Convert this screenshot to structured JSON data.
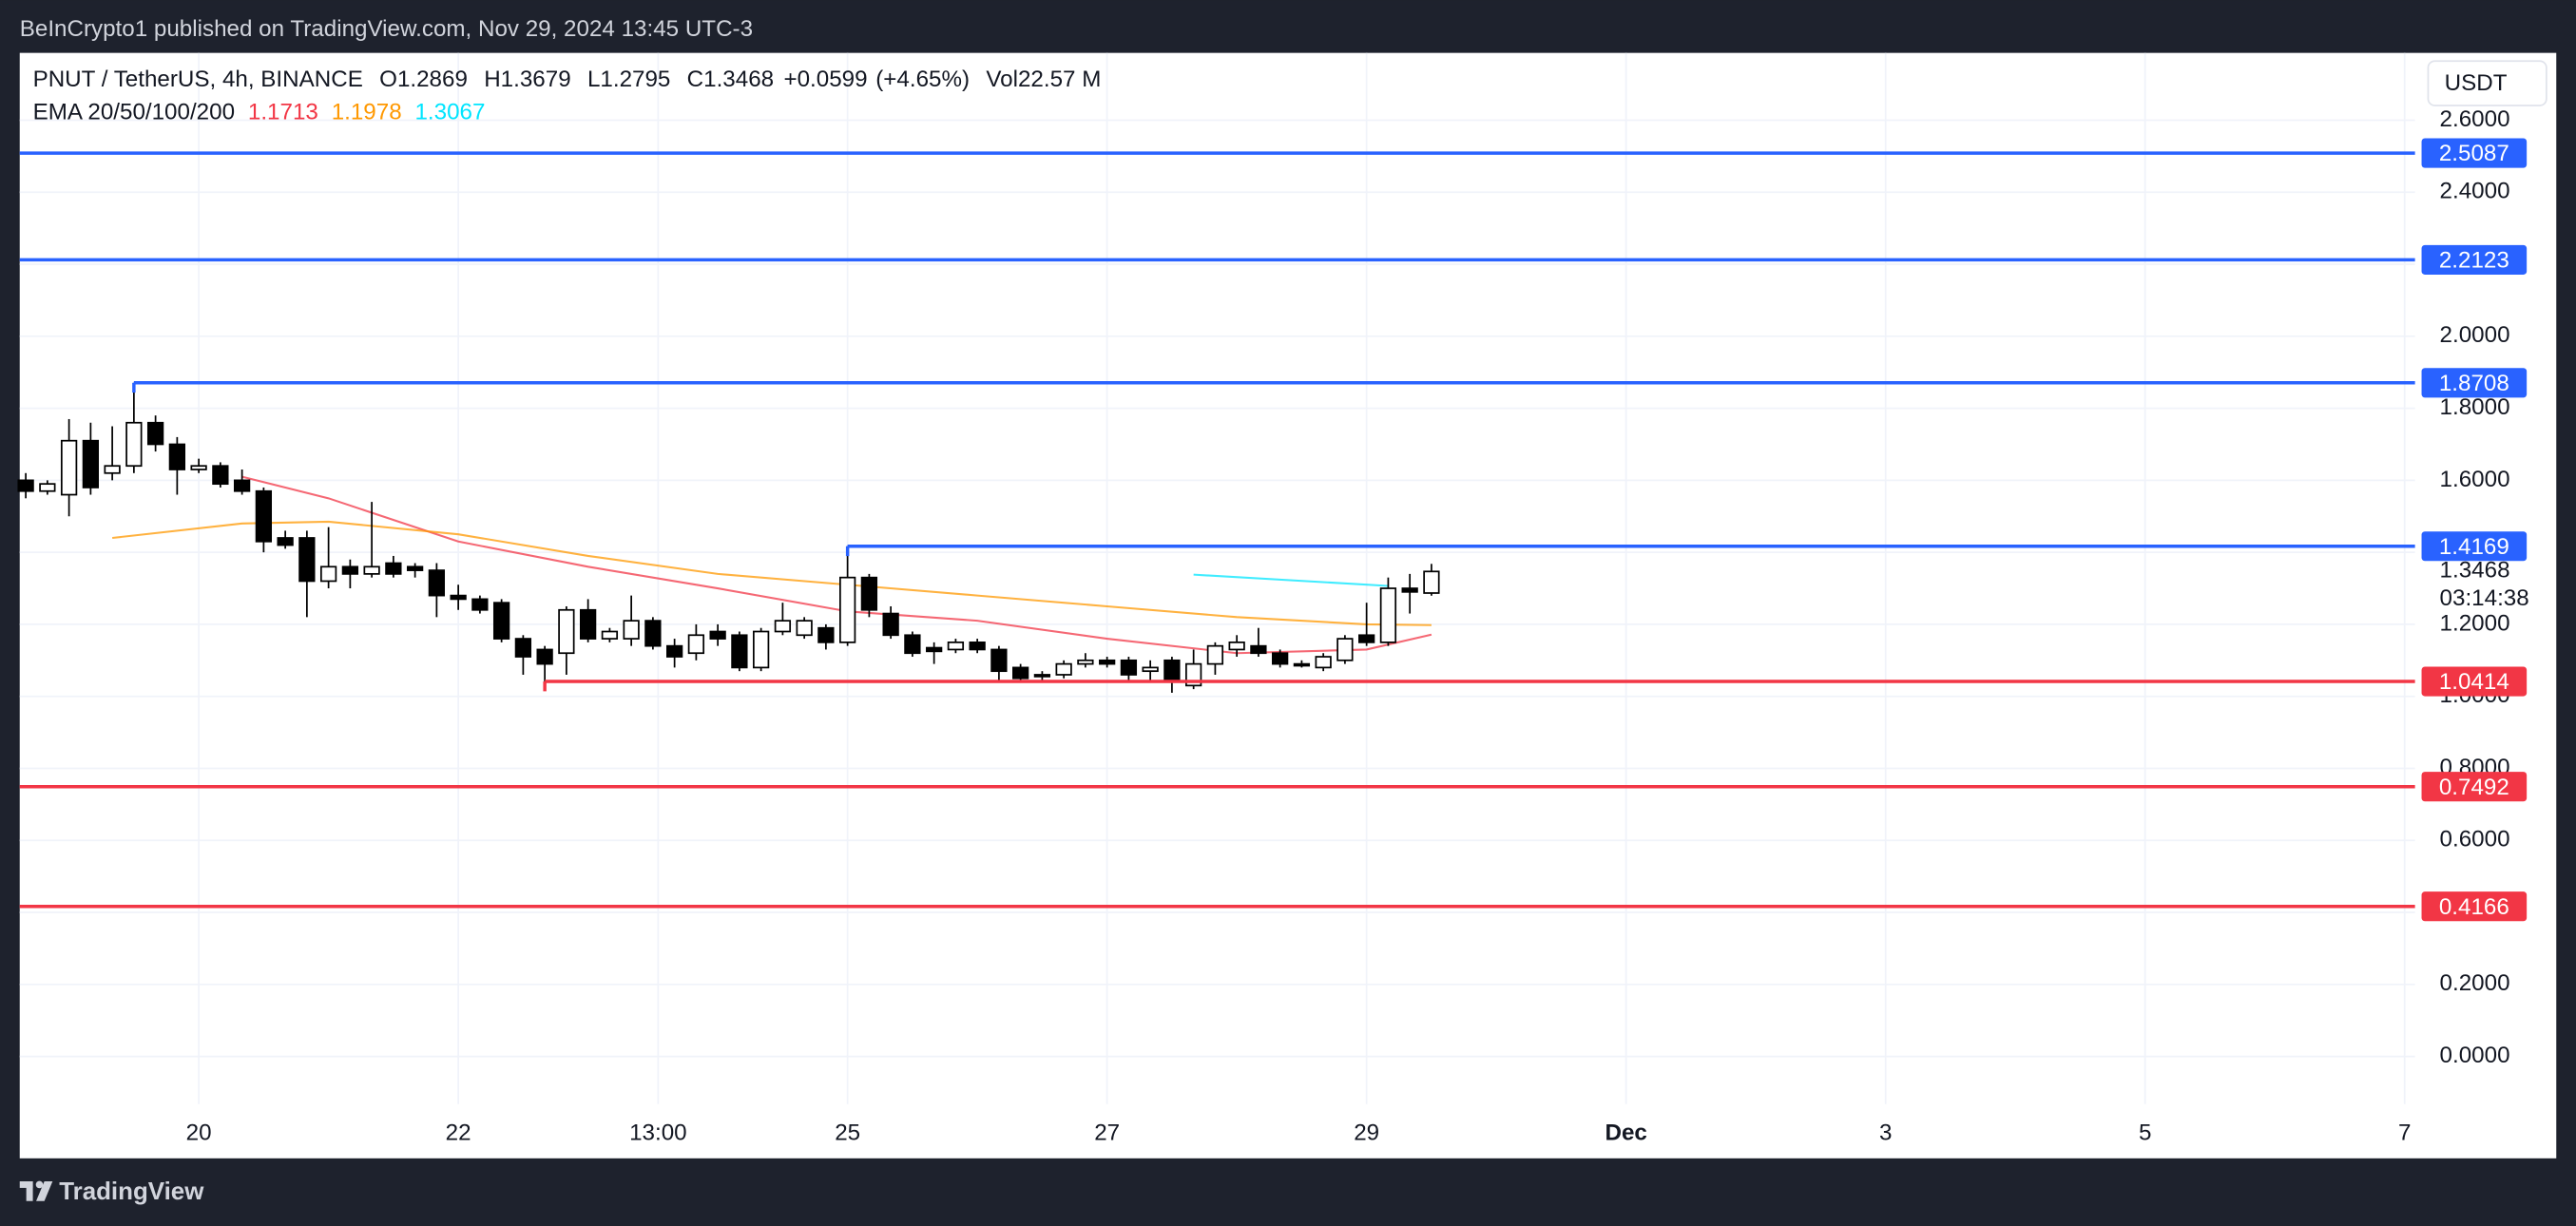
{
  "header": {
    "text": "BeInCrypto1 published on TradingView.com, Nov 29, 2024 13:45 UTC-3"
  },
  "footer": {
    "text": "TradingView"
  },
  "chart_data": {
    "type": "candlestick",
    "title": "PNUT / TetherUS, 4h, BINANCE",
    "ohlc": [
      {
        "prefix": "O",
        "value": 1.2869
      },
      {
        "prefix": "H",
        "value": 1.3679
      },
      {
        "prefix": "L",
        "value": 1.2795
      },
      {
        "prefix": "C",
        "value": 1.3468
      }
    ],
    "change": {
      "value": 0.0599,
      "label": "+0.0599"
    },
    "change_pct": {
      "value": 4.65,
      "label": "(+4.65%)"
    },
    "volume": {
      "prefix": "Vol",
      "value": 22570000,
      "label": "22.57 M"
    },
    "ema_legend": {
      "title": "EMA 20/50/100/200",
      "values": [
        1.1713,
        1.1978,
        1.3067
      ]
    },
    "currency": "USDT",
    "last_price": 1.3468,
    "countdown": "03:14:38",
    "candles": {
      "x": [
        18.6667,
        18.8333,
        19,
        19.1667,
        19.3333,
        19.5,
        19.6667,
        19.8333,
        20,
        20.1667,
        20.3333,
        20.5,
        20.6667,
        20.8333,
        21,
        21.1667,
        21.3333,
        21.5,
        21.6667,
        21.8333,
        22,
        22.1667,
        22.3333,
        22.5,
        22.6667,
        22.8333,
        23,
        23.1667,
        23.3333,
        23.5,
        23.6667,
        23.8333,
        24,
        24.1667,
        24.3333,
        24.5,
        24.6667,
        24.8333,
        25,
        25.1667,
        25.3333,
        25.5,
        25.6667,
        25.8333,
        26,
        26.1667,
        26.3333,
        26.5,
        26.6667,
        26.8333,
        27,
        27.1667,
        27.3333,
        27.5,
        27.6667,
        27.8333,
        28,
        28.1667,
        28.3333,
        28.5,
        28.6667,
        28.8333,
        29,
        29.1667,
        29.3333,
        29.5
      ],
      "open": [
        1.6,
        1.57,
        1.56,
        1.71,
        1.62,
        1.64,
        1.76,
        1.7,
        1.63,
        1.64,
        1.6,
        1.57,
        1.44,
        1.44,
        1.32,
        1.36,
        1.34,
        1.37,
        1.36,
        1.35,
        1.28,
        1.27,
        1.26,
        1.16,
        1.13,
        1.12,
        1.24,
        1.16,
        1.16,
        1.21,
        1.14,
        1.12,
        1.18,
        1.17,
        1.08,
        1.18,
        1.17,
        1.19,
        1.15,
        1.33,
        1.23,
        1.17,
        1.135,
        1.13,
        1.15,
        1.13,
        1.08,
        1.06,
        1.06,
        1.09,
        1.1,
        1.1,
        1.07,
        1.1,
        1.03,
        1.09,
        1.13,
        1.14,
        1.12,
        1.09,
        1.08,
        1.1,
        1.17,
        1.15,
        1.3,
        1.2869
      ],
      "high": [
        1.62,
        1.6,
        1.77,
        1.76,
        1.75,
        1.8708,
        1.78,
        1.72,
        1.66,
        1.65,
        1.63,
        1.58,
        1.46,
        1.46,
        1.47,
        1.38,
        1.54,
        1.39,
        1.37,
        1.37,
        1.31,
        1.28,
        1.27,
        1.17,
        1.14,
        1.25,
        1.27,
        1.19,
        1.28,
        1.22,
        1.16,
        1.2,
        1.2,
        1.18,
        1.19,
        1.26,
        1.22,
        1.2,
        1.4169,
        1.34,
        1.25,
        1.18,
        1.15,
        1.16,
        1.16,
        1.14,
        1.09,
        1.07,
        1.1,
        1.12,
        1.11,
        1.11,
        1.1,
        1.11,
        1.13,
        1.15,
        1.17,
        1.19,
        1.13,
        1.1,
        1.12,
        1.17,
        1.26,
        1.33,
        1.34,
        1.3679
      ],
      "low": [
        1.55,
        1.56,
        1.5,
        1.56,
        1.6,
        1.62,
        1.68,
        1.56,
        1.62,
        1.58,
        1.56,
        1.4,
        1.41,
        1.22,
        1.3,
        1.3,
        1.33,
        1.33,
        1.33,
        1.22,
        1.24,
        1.23,
        1.15,
        1.06,
        1.0414,
        1.06,
        1.15,
        1.15,
        1.14,
        1.13,
        1.08,
        1.1,
        1.14,
        1.07,
        1.07,
        1.17,
        1.16,
        1.13,
        1.14,
        1.22,
        1.16,
        1.11,
        1.09,
        1.12,
        1.12,
        1.04,
        1.04,
        1.04,
        1.05,
        1.08,
        1.08,
        1.04,
        1.04,
        1.01,
        1.02,
        1.06,
        1.11,
        1.11,
        1.08,
        1.08,
        1.07,
        1.09,
        1.14,
        1.14,
        1.23,
        1.2795
      ],
      "close": [
        1.57,
        1.59,
        1.71,
        1.58,
        1.64,
        1.76,
        1.7,
        1.63,
        1.64,
        1.59,
        1.57,
        1.43,
        1.42,
        1.32,
        1.36,
        1.34,
        1.36,
        1.34,
        1.35,
        1.28,
        1.27,
        1.24,
        1.16,
        1.11,
        1.09,
        1.24,
        1.16,
        1.18,
        1.21,
        1.14,
        1.11,
        1.17,
        1.16,
        1.08,
        1.18,
        1.21,
        1.21,
        1.15,
        1.33,
        1.24,
        1.17,
        1.12,
        1.125,
        1.15,
        1.13,
        1.07,
        1.05,
        1.055,
        1.09,
        1.1,
        1.09,
        1.06,
        1.08,
        1.04,
        1.09,
        1.14,
        1.15,
        1.12,
        1.09,
        1.085,
        1.11,
        1.16,
        1.15,
        1.3,
        1.29,
        1.3468
      ]
    },
    "lines": [
      {
        "color": "#f23645",
        "x": [
          20.3333,
          21,
          22,
          23,
          24,
          25,
          26,
          27,
          28,
          29,
          29.5
        ],
        "values": [
          1.61,
          1.55,
          1.43,
          1.36,
          1.3,
          1.236,
          1.21,
          1.16,
          1.12,
          1.13,
          1.1713
        ]
      },
      {
        "color": "#ff9800",
        "x": [
          19.3333,
          20.3333,
          21,
          22,
          23,
          24,
          25,
          26,
          27,
          28,
          29,
          29.5
        ],
        "values": [
          1.44,
          1.48,
          1.485,
          1.45,
          1.39,
          1.34,
          1.31,
          1.28,
          1.25,
          1.22,
          1.2,
          1.1978
        ]
      },
      {
        "color": "#00e5ff",
        "x": [
          27.6667,
          29.1667
        ],
        "values": [
          1.338,
          1.3067
        ]
      }
    ],
    "levels": [
      {
        "value": 2.5087,
        "color": "#2962ff"
      },
      {
        "value": 2.2123,
        "color": "#2962ff"
      },
      {
        "value": 1.8708,
        "color": "#2962ff",
        "from": 19.5
      },
      {
        "value": 1.4169,
        "color": "#2962ff",
        "from": 25
      },
      {
        "value": 1.0414,
        "color": "#f23645",
        "from": 22.6667
      },
      {
        "value": 0.7492,
        "color": "#f23645"
      },
      {
        "value": 0.4166,
        "color": "#f23645"
      }
    ],
    "xlim": [
      18.62,
      37.08
    ],
    "xticks": [
      20,
      22,
      {
        "value": 23.54,
        "label": "13:00"
      },
      25,
      27,
      29,
      {
        "value": 31,
        "label": "Dec"
      },
      {
        "value": 33,
        "label": "3"
      },
      {
        "value": 35,
        "label": "5"
      },
      {
        "value": 37,
        "label": "7"
      }
    ],
    "ylim": [
      -0.283,
      2.787
    ],
    "yticks": [
      {
        "value": 0,
        "label": "0.0000"
      },
      {
        "value": 0.2,
        "label": "0.2000"
      },
      {
        "value": 0.4,
        "label": "0.4000"
      },
      {
        "value": 0.6,
        "label": "0.6000"
      },
      {
        "value": 0.8,
        "label": "0.8000"
      },
      {
        "value": 1,
        "label": "1.0000"
      },
      {
        "value": 1.2,
        "label": "1.2000"
      },
      {
        "value": 1.4,
        "label": "1.4000"
      },
      {
        "value": 1.6,
        "label": "1.6000"
      },
      {
        "value": 1.8,
        "label": "1.8000"
      },
      {
        "value": 2,
        "label": "2.0000"
      },
      {
        "value": 2.2,
        "label": "2.2000"
      },
      {
        "value": 2.4,
        "label": "2.4000"
      },
      {
        "value": 2.6,
        "label": "2.6000"
      }
    ],
    "grid": true,
    "up_color": "#ffffff",
    "down_color": "#000000"
  }
}
